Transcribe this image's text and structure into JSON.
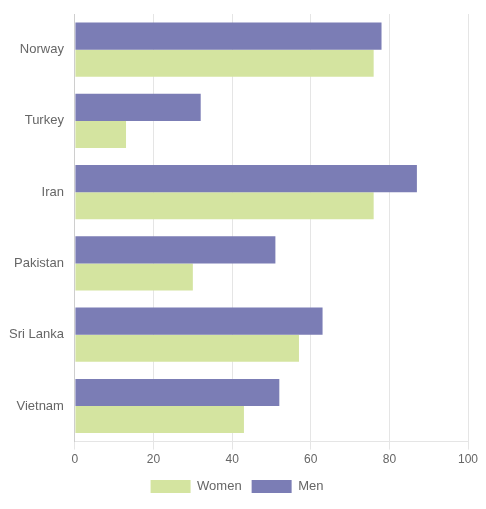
{
  "chart_data": {
    "type": "bar",
    "orientation": "horizontal",
    "categories": [
      "Norway",
      "Turkey",
      "Iran",
      "Pakistan",
      "Sri Lanka",
      "Vietnam"
    ],
    "series": [
      {
        "name": "Men",
        "color": "#7b7db5",
        "values": [
          78,
          32,
          87,
          51,
          63,
          52
        ]
      },
      {
        "name": "Women",
        "color": "#d4e4a0",
        "values": [
          76,
          13,
          76,
          30,
          57,
          43
        ]
      }
    ],
    "xlim": [
      0,
      100
    ],
    "xticks": [
      0,
      20,
      40,
      60,
      80,
      100
    ],
    "grid": true,
    "legend": "bottom"
  }
}
